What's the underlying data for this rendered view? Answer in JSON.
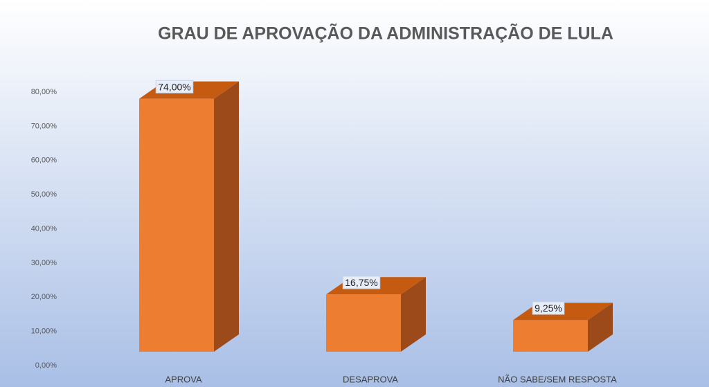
{
  "chart_data": {
    "type": "bar3d",
    "title": "GRAU DE APROVAÇÃO DA ADMINISTRAÇÃO DE LULA",
    "categories": [
      "APROVA",
      "DESAPROVA",
      "NÃO SABE/SEM RESPOSTA"
    ],
    "values": [
      74,
      16.75,
      9.25
    ],
    "value_labels": [
      "74,00%",
      "16,75%",
      "9,25%"
    ],
    "color": "#ed7d31",
    "ylim": [
      0,
      80
    ],
    "yticks": [
      {
        "value": 0,
        "label": "0,00%"
      },
      {
        "value": 10,
        "label": "10,00%"
      },
      {
        "value": 20,
        "label": "20,00%"
      },
      {
        "value": 30,
        "label": "30,00%"
      },
      {
        "value": 40,
        "label": "40,00%"
      },
      {
        "value": 50,
        "label": "50,00%"
      },
      {
        "value": 60,
        "label": "60,00%"
      },
      {
        "value": 70,
        "label": "70,00%"
      },
      {
        "value": 80,
        "label": "80,00%"
      }
    ]
  }
}
